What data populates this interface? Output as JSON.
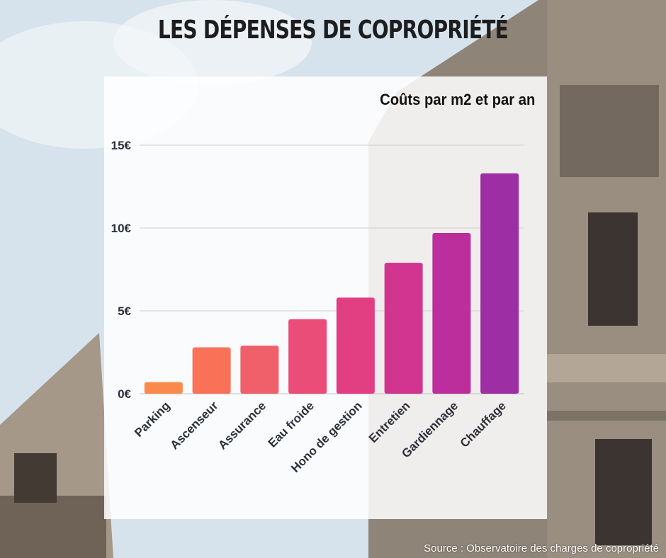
{
  "title": "LES DÉPENSES DE COPROPRIÉTÉ",
  "subtitle": "Coûts par m2 et par an",
  "source": "Source : Observatoire des charges de copropriété",
  "chart_data": {
    "type": "bar",
    "title": "Coûts par m2 et par an",
    "categories": [
      "Parking",
      "Ascenseur",
      "Assurance",
      "Eau froide",
      "Hono de gestion",
      "Entretien",
      "Gardiennage",
      "Chauffage"
    ],
    "values": [
      0.7,
      2.8,
      2.9,
      4.5,
      5.8,
      7.9,
      9.7,
      13.3
    ],
    "colors": [
      "#fa8a4c",
      "#f97258",
      "#f0606a",
      "#ea4d78",
      "#e23f83",
      "#d2358f",
      "#bb2e9b",
      "#9d2ea3"
    ],
    "yticks": [
      "0€",
      "5€",
      "10€",
      "15€"
    ],
    "ytick_values": [
      0,
      5,
      10,
      15
    ],
    "ylim": [
      0,
      15
    ],
    "grid": true,
    "legend": "none"
  }
}
